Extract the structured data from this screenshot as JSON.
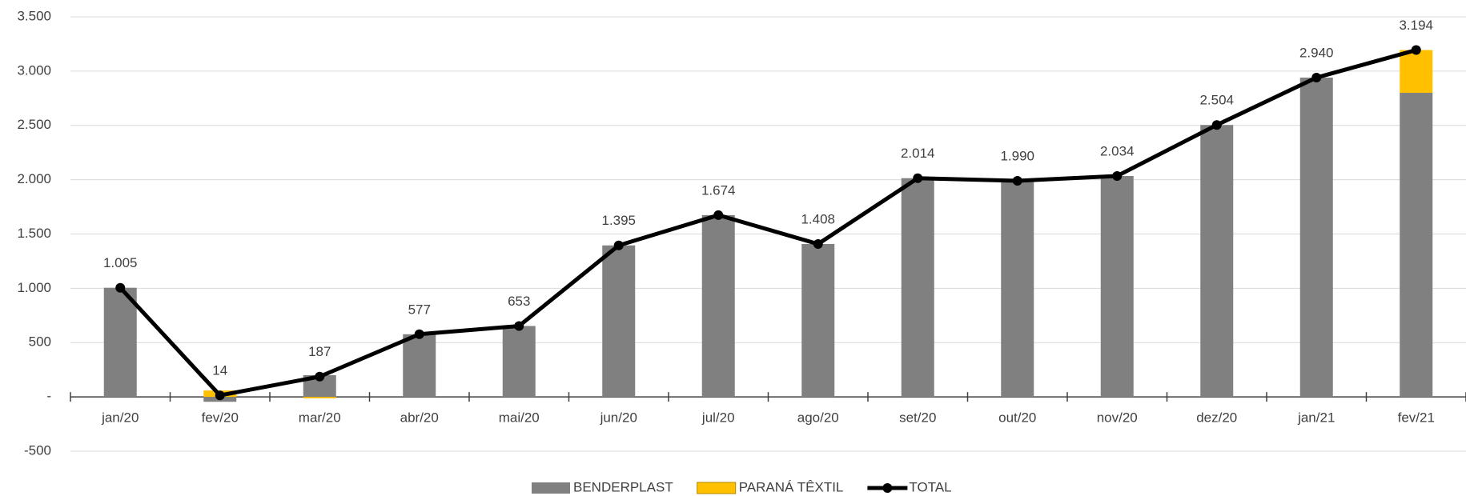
{
  "chart_data": {
    "type": "combo",
    "categories": [
      "jan/20",
      "fev/20",
      "mar/20",
      "abr/20",
      "mai/20",
      "jun/20",
      "jul/20",
      "ago/20",
      "set/20",
      "out/20",
      "nov/20",
      "dez/20",
      "jan/21",
      "fev/21"
    ],
    "series": [
      {
        "name": "BENDERPLAST",
        "type": "bar",
        "color": "#808080",
        "values": [
          1005,
          -45,
          200,
          577,
          653,
          1395,
          1674,
          1408,
          2014,
          1990,
          2034,
          2504,
          2940,
          2800
        ]
      },
      {
        "name": "PARANÁ TÊXTIL",
        "type": "bar",
        "color": "#ffc000",
        "values": [
          0,
          59,
          -13,
          0,
          0,
          0,
          0,
          0,
          0,
          0,
          0,
          0,
          0,
          394
        ]
      },
      {
        "name": "TOTAL",
        "type": "line",
        "color": "#000000",
        "values": [
          1005,
          14,
          187,
          577,
          653,
          1395,
          1674,
          1408,
          2014,
          1990,
          2034,
          2504,
          2940,
          3194
        ],
        "value_labels": [
          "1.005",
          "14",
          "187",
          "577",
          "653",
          "1.395",
          "1.674",
          "1.408",
          "2.014",
          "1.990",
          "2.034",
          "2.504",
          "2.940",
          "3.194"
        ]
      }
    ],
    "ylim": [
      -500,
      3500
    ],
    "yticks": [
      {
        "value": 3500,
        "label": "3.500"
      },
      {
        "value": 3000,
        "label": "3.000"
      },
      {
        "value": 2500,
        "label": "2.500"
      },
      {
        "value": 2000,
        "label": "2.000"
      },
      {
        "value": 1500,
        "label": "1.500"
      },
      {
        "value": 1000,
        "label": "1.000"
      },
      500,
      {
        "value": 0,
        "label": "-"
      },
      -500
    ],
    "grid": true,
    "legend": "bottom"
  }
}
